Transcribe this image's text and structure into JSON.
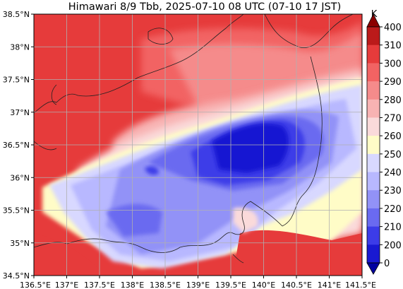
{
  "title": "Himawari 8/9 Tbb, 2025-07-10 08 UTC (07-10 17 JST)",
  "map": {
    "lon_labels": [
      "136.5°E",
      "137°E",
      "137.5°E",
      "138°E",
      "138.5°E",
      "139°E",
      "139.5°E",
      "140°E",
      "140.5°E",
      "141°E",
      "141.5°E"
    ],
    "lat_labels": [
      "38.5°N",
      "38°N",
      "37.5°N",
      "37°N",
      "36.5°N",
      "36°N",
      "35.5°N",
      "35°N",
      "34.5°N"
    ],
    "lon_range": [
      136.5,
      141.5
    ],
    "lat_range": [
      34.5,
      38.5
    ],
    "gridlines": true
  },
  "colorbar": {
    "unit": "K",
    "ticks": [
      "400",
      "310",
      "300",
      "290",
      "280",
      "270",
      "260",
      "250",
      "240",
      "230",
      "220",
      "210",
      "200",
      "0"
    ],
    "colors": [
      "#8b0000",
      "#bb1a1a",
      "#e63b3b",
      "#f26363",
      "#f58b8b",
      "#f8b3b3",
      "#fadada",
      "#fffcc7",
      "#d8d8ff",
      "#b8b8ff",
      "#9292f7",
      "#6a6af0",
      "#3c3ce8",
      "#1919d2",
      "#0000a0"
    ]
  }
}
